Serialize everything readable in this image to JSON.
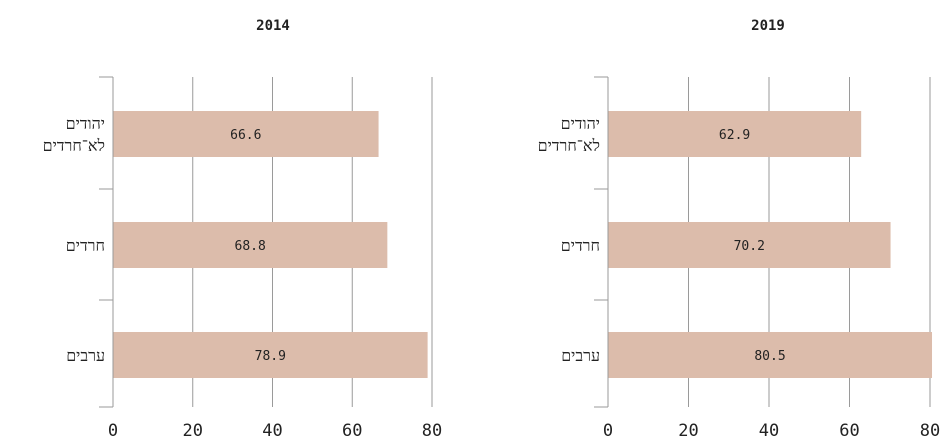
{
  "colors": {
    "bar": "#dcbcab",
    "grid": "#9a9a9a",
    "text": "#222222"
  },
  "chart_data": [
    {
      "type": "bar",
      "orientation": "horizontal",
      "title": "2014",
      "xlim": [
        0,
        80
      ],
      "xticks": [
        "0",
        "20",
        "40",
        "60",
        "80"
      ],
      "categories": [
        [
          "יהודים",
          "לא־חרדים"
        ],
        [
          "חרדים"
        ],
        [
          "ערבים"
        ]
      ],
      "values": [
        66.6,
        68.8,
        78.9
      ],
      "labels": [
        "66.6",
        "68.8",
        "78.9"
      ],
      "grid": true
    },
    {
      "type": "bar",
      "orientation": "horizontal",
      "title": "2019",
      "xlim": [
        0,
        80
      ],
      "xticks": [
        "0",
        "20",
        "40",
        "60",
        "80"
      ],
      "categories": [
        [
          "יהודים",
          "לא־חרדים"
        ],
        [
          "חרדים"
        ],
        [
          "ערבים"
        ]
      ],
      "values": [
        62.9,
        70.2,
        80.5
      ],
      "labels": [
        "62.9",
        "70.2",
        "80.5"
      ],
      "grid": true
    }
  ]
}
